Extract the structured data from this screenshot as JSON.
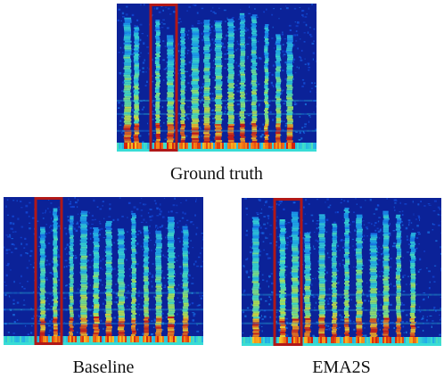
{
  "panels": [
    {
      "id": "ground_truth",
      "caption": "Ground truth"
    },
    {
      "id": "baseline",
      "caption": "Baseline"
    },
    {
      "id": "ema2s",
      "caption": "EMA2S"
    }
  ],
  "colors": {
    "background": "#0a1d8f",
    "highlight_box": "#b01818"
  }
}
